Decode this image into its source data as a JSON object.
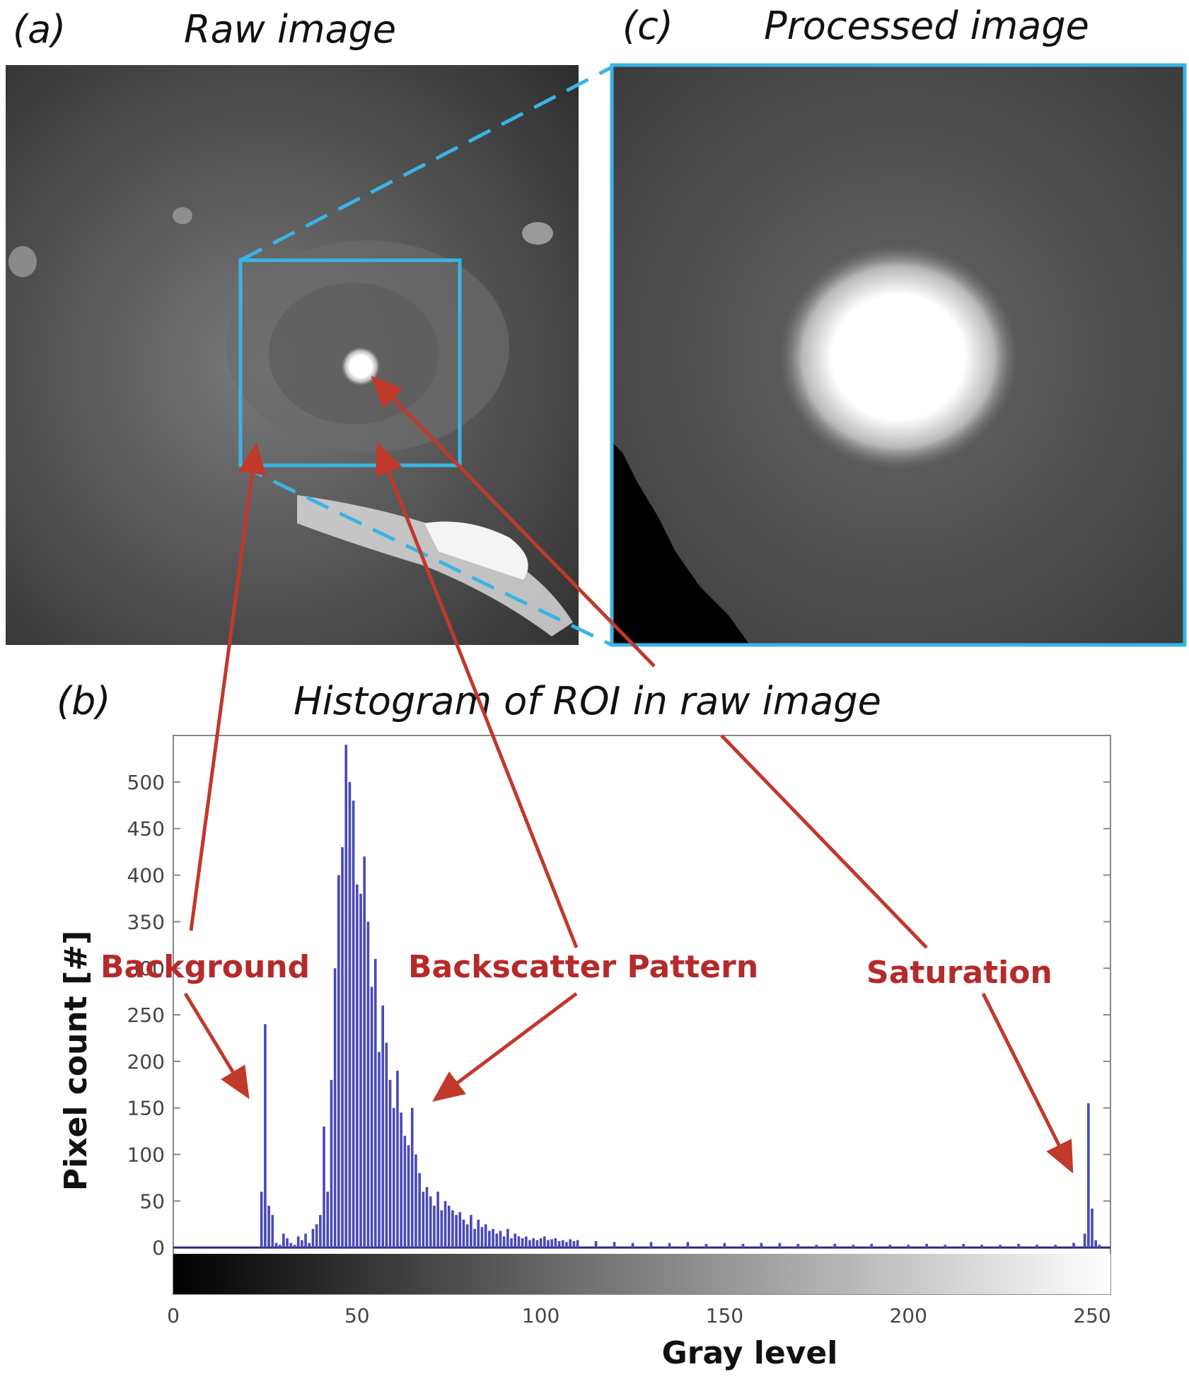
{
  "panels": {
    "a": {
      "tag": "(a)",
      "title": "Raw image"
    },
    "b": {
      "tag": "(b)",
      "title": "Histogram of ROI in raw image"
    },
    "c": {
      "tag": "(c)",
      "title": "Processed image"
    }
  },
  "annotations": {
    "background": "Background",
    "backscatter": "Backscatter Pattern",
    "saturation": "Saturation"
  },
  "colors": {
    "roi_box": "#3ab4e6",
    "arrow": "#c0392b",
    "bars": "#4a4ab8"
  },
  "chart_data": {
    "type": "bar",
    "title": "Histogram of ROI in raw image",
    "xlabel": "Gray level",
    "ylabel": "Pixel count  [#]",
    "xlim": [
      0,
      255
    ],
    "ylim": [
      -50,
      550
    ],
    "xticks": [
      0,
      50,
      100,
      150,
      200,
      250
    ],
    "yticks": [
      0,
      50,
      100,
      150,
      200,
      250,
      300,
      350,
      400,
      450,
      500
    ],
    "x": [
      24,
      25,
      26,
      27,
      28,
      29,
      30,
      31,
      32,
      33,
      34,
      35,
      36,
      37,
      38,
      39,
      40,
      41,
      42,
      43,
      44,
      45,
      46,
      47,
      48,
      49,
      50,
      51,
      52,
      53,
      54,
      55,
      56,
      57,
      58,
      59,
      60,
      61,
      62,
      63,
      64,
      65,
      66,
      67,
      68,
      69,
      70,
      71,
      72,
      73,
      74,
      75,
      76,
      77,
      78,
      79,
      80,
      81,
      82,
      83,
      84,
      85,
      86,
      87,
      88,
      89,
      90,
      91,
      92,
      93,
      94,
      95,
      96,
      97,
      98,
      99,
      100,
      101,
      102,
      103,
      104,
      105,
      106,
      107,
      108,
      109,
      110,
      115,
      120,
      125,
      130,
      135,
      140,
      145,
      150,
      155,
      160,
      165,
      170,
      175,
      180,
      185,
      190,
      195,
      200,
      205,
      210,
      215,
      220,
      225,
      230,
      235,
      240,
      245,
      248,
      249,
      250,
      251,
      252
    ],
    "values": [
      60,
      240,
      45,
      35,
      5,
      3,
      15,
      10,
      5,
      3,
      12,
      8,
      15,
      5,
      20,
      25,
      35,
      130,
      60,
      180,
      300,
      400,
      430,
      540,
      500,
      480,
      390,
      380,
      420,
      350,
      280,
      310,
      210,
      260,
      220,
      180,
      150,
      190,
      145,
      120,
      110,
      150,
      100,
      80,
      60,
      65,
      55,
      45,
      60,
      40,
      50,
      45,
      40,
      35,
      38,
      30,
      25,
      35,
      20,
      30,
      22,
      25,
      18,
      20,
      15,
      18,
      12,
      20,
      10,
      15,
      12,
      10,
      12,
      8,
      10,
      8,
      10,
      12,
      8,
      9,
      10,
      7,
      8,
      6,
      9,
      7,
      8,
      7,
      6,
      5,
      6,
      5,
      6,
      4,
      5,
      4,
      5,
      5,
      4,
      3,
      4,
      3,
      4,
      3,
      3,
      4,
      3,
      4,
      3,
      3,
      4,
      3,
      3,
      5,
      15,
      155,
      42,
      8,
      3
    ]
  }
}
